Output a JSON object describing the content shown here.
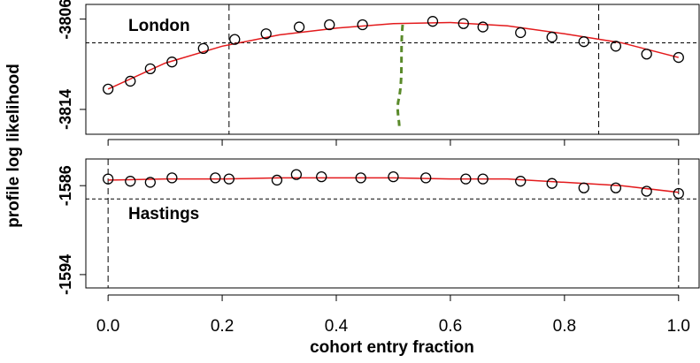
{
  "chart_data": [
    {
      "type": "scatter",
      "annotation": "London",
      "ylabel": "profile log likelihood",
      "xlim": [
        -0.039,
        1.036
      ],
      "ylim": [
        -3816.2,
        -3804.7
      ],
      "yticks": [
        -3806,
        -3814
      ],
      "x": [
        0,
        0.039,
        0.074,
        0.112,
        0.167,
        0.222,
        0.277,
        0.335,
        0.388,
        0.446,
        0.569,
        0.623,
        0.657,
        0.723,
        0.778,
        0.834,
        0.89,
        0.944,
        1.0
      ],
      "values": [
        -3812.2,
        -3811.5,
        -3810.4,
        -3809.8,
        -3808.6,
        -3807.8,
        -3807.3,
        -3806.7,
        -3806.5,
        -3806.5,
        -3806.2,
        -3806.4,
        -3806.7,
        -3807.2,
        -3807.6,
        -3808.0,
        -3808.4,
        -3809.1,
        -3809.4
      ],
      "color": "#000000",
      "curve": {
        "x": [
          0,
          0.1,
          0.2,
          0.3,
          0.4,
          0.5,
          0.6,
          0.7,
          0.8,
          0.9,
          1.0
        ],
        "values": [
          -3812.2,
          -3809.9,
          -3808.4,
          -3807.4,
          -3806.8,
          -3806.4,
          -3806.3,
          -3806.6,
          -3807.3,
          -3808.1,
          -3809.4
        ],
        "color": "#e31a1c"
      },
      "hline": -3808.1,
      "vlines": [
        0.212,
        0.86
      ]
    },
    {
      "type": "scatter",
      "annotation": "Hastings",
      "xlabel": "cohort entry fraction",
      "xlim": [
        -0.039,
        1.036
      ],
      "ylim": [
        -1595.2,
        -1583.6
      ],
      "yticks": [
        -1586,
        -1594
      ],
      "xticks": [
        {
          "value": 0,
          "label": "0.0"
        },
        0.2,
        0.4,
        0.6,
        0.8,
        {
          "value": 1,
          "label": "1.0"
        }
      ],
      "x": [
        0,
        0.039,
        0.074,
        0.112,
        0.188,
        0.212,
        0.296,
        0.33,
        0.374,
        0.443,
        0.5,
        0.557,
        0.627,
        0.657,
        0.723,
        0.778,
        0.834,
        0.89,
        0.944,
        1.0
      ],
      "values": [
        -1585.4,
        -1585.6,
        -1585.7,
        -1585.3,
        -1585.3,
        -1585.4,
        -1585.5,
        -1585.0,
        -1585.2,
        -1585.3,
        -1585.2,
        -1585.3,
        -1585.4,
        -1585.4,
        -1585.6,
        -1585.8,
        -1586.2,
        -1586.2,
        -1586.5,
        -1586.7
      ],
      "color": "#000000",
      "curve": {
        "x": [
          0,
          0.1,
          0.2,
          0.3,
          0.4,
          0.5,
          0.6,
          0.7,
          0.8,
          0.9,
          1.0
        ],
        "values": [
          -1585.5,
          -1585.4,
          -1585.4,
          -1585.3,
          -1585.3,
          -1585.3,
          -1585.4,
          -1585.4,
          -1585.7,
          -1586.0,
          -1586.6
        ],
        "color": "#e31a1c"
      },
      "hline": -1587.2,
      "vlines": [
        0,
        1.0
      ]
    }
  ]
}
